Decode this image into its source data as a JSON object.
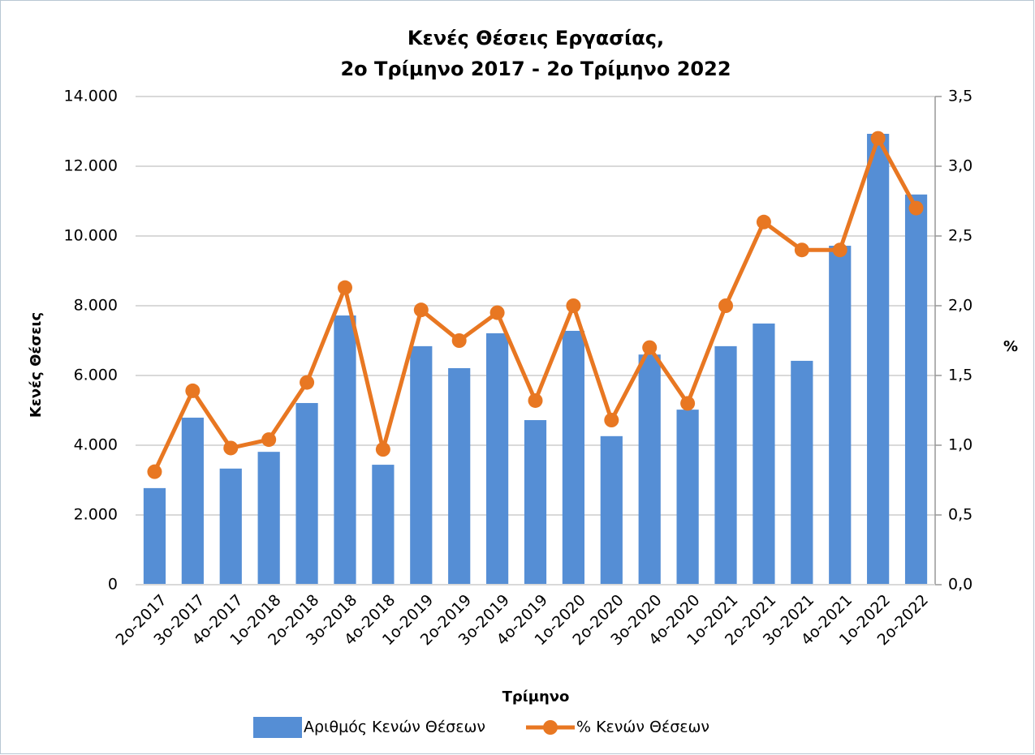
{
  "chart_data": {
    "type": "bar_line",
    "title": [
      "Κενές Θέσεις Εργασίας,",
      "2ο Τρίμηνο 2017 - 2ο Τρίμηνο 2022"
    ],
    "x_label": "Τρίμηνο",
    "y_label": "Κενές Θέσεις",
    "y2_label": "%",
    "categories": [
      "2ο-2017",
      "3ο-2017",
      "4ο-2017",
      "1ο-2018",
      "2ο-2018",
      "3ο-2018",
      "4ο-2018",
      "1ο-2019",
      "2ο-2019",
      "3ο-2019",
      "4ο-2019",
      "1ο-2020",
      "2ο-2020",
      "3ο-2020",
      "4ο-2020",
      "1ο-2021",
      "2ο-2021",
      "3ο-2021",
      "4ο-2021",
      "1ο-2022",
      "2ο-2022"
    ],
    "series": [
      {
        "name": "Αριθμός Κενών Θέσεων",
        "type": "bar",
        "color": "#558ed5",
        "values": [
          2770,
          4790,
          3330,
          3810,
          5210,
          7720,
          3440,
          6840,
          6210,
          7210,
          4720,
          7280,
          4260,
          6600,
          5020,
          6840,
          7490,
          6420,
          9720,
          12930,
          11190
        ]
      },
      {
        "name": "% Κενών Θέσεων",
        "type": "line",
        "axis": "y2",
        "color": "#e87722",
        "values": [
          0.81,
          1.39,
          0.98,
          1.04,
          1.45,
          2.13,
          0.97,
          1.97,
          1.75,
          1.95,
          1.32,
          2.0,
          1.18,
          1.7,
          1.3,
          2.0,
          2.6,
          2.4,
          2.4,
          3.2,
          2.7
        ]
      }
    ],
    "ylim": [
      0,
      14000
    ],
    "yticks": [
      {
        "value": 0,
        "label": "0"
      },
      {
        "value": 2000,
        "label": "2.000"
      },
      {
        "value": 4000,
        "label": "4.000"
      },
      {
        "value": 6000,
        "label": "6.000"
      },
      {
        "value": 8000,
        "label": "8.000"
      },
      {
        "value": 10000,
        "label": "10.000"
      },
      {
        "value": 12000,
        "label": "12.000"
      },
      {
        "value": 14000,
        "label": "14.000"
      }
    ],
    "y2lim": [
      0,
      3.5
    ],
    "y2ticks": [
      {
        "value": 0,
        "label": "0,0"
      },
      {
        "value": 0.5,
        "label": "0,5"
      },
      {
        "value": 1,
        "label": "1,0"
      },
      {
        "value": 1.5,
        "label": "1,5"
      },
      {
        "value": 2,
        "label": "2,0"
      },
      {
        "value": 2.5,
        "label": "2,5"
      },
      {
        "value": 3,
        "label": "3,0"
      },
      {
        "value": 3.5,
        "label": "3,5"
      }
    ],
    "grid": true,
    "legend": "bottom"
  }
}
